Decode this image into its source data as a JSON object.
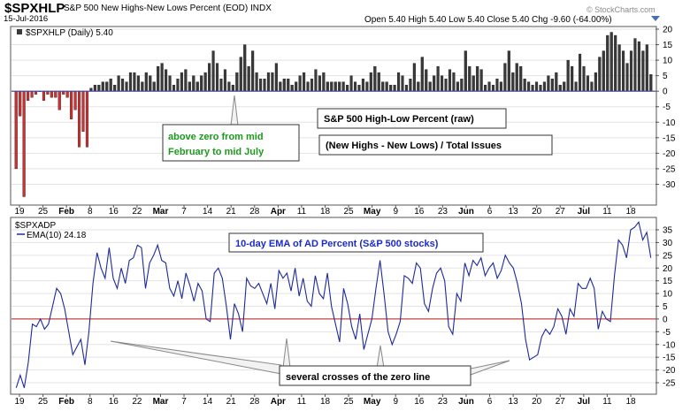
{
  "header": {
    "symbol": "$SPXHLP",
    "description": "S&P 500 New Highs-New Lows Percent (EOD)  INDX",
    "date": "15-Jul-2016",
    "quote": "Open 5.40  High 5.40  Low 5.40  Close 5.40  Chg -9.60 (-64.00%)",
    "watermark": "© StockCharts.com"
  },
  "x_axis": {
    "ticks": [
      "19",
      "25",
      "Feb",
      "8",
      "16",
      "22",
      "Mar",
      "7",
      "14",
      "21",
      "28",
      "Apr",
      "11",
      "18",
      "25",
      "May",
      "9",
      "16",
      "23",
      "Jun",
      "6",
      "13",
      "20",
      "27",
      "Jul",
      "11",
      "18"
    ],
    "bold": [
      "Feb",
      "Mar",
      "Apr",
      "May",
      "Jun",
      "Jul"
    ]
  },
  "colors": {
    "up_bar": "#3a3a3a",
    "down_bar": "#d03030",
    "ema_line": "#1e2a9a",
    "zero_line": "#c01818",
    "title_blue": "#1a2ad0",
    "annotation_green": "#1a9a1a"
  },
  "annotations": {
    "hilo_box1": "S&P 500 High-Low Percent (raw)",
    "hilo_box2": "(New Highs - New Lows) /  Total Issues",
    "green_note_line1": "above zero from mid",
    "green_note_line2": "February to mid July",
    "ema_title": "10-day EMA of AD Percent (S&P 500 stocks)",
    "crosses_note": "several crosses of the zero line"
  },
  "chart_data": [
    {
      "type": "bar",
      "legend": "$SPXHLP (Daily) 5.40",
      "ylim": [
        -35,
        20
      ],
      "yticks": [
        20,
        15,
        10,
        5,
        0,
        -5,
        -10,
        -15,
        -20,
        -25,
        -30
      ],
      "values": [
        -25,
        -8,
        -34,
        -3,
        -2,
        -1,
        0,
        -3,
        -1,
        -2,
        -2,
        -6,
        -1,
        -2,
        -9,
        -6,
        -18,
        -13,
        -18,
        1,
        2,
        2,
        3,
        3,
        4,
        2,
        5,
        4,
        3,
        6,
        6,
        5,
        3,
        6,
        5,
        3,
        8,
        9,
        7,
        5,
        2,
        4,
        6,
        7,
        3,
        5,
        3,
        5,
        6,
        9,
        13,
        9,
        4,
        7,
        3,
        2,
        6,
        11,
        15,
        8,
        13,
        6,
        4,
        4,
        6,
        6,
        9,
        3,
        4,
        4,
        2,
        3,
        5,
        6,
        3,
        4,
        7,
        5,
        6,
        3,
        3,
        3,
        3,
        3,
        2,
        5,
        3,
        2,
        4,
        3,
        6,
        8,
        6,
        3,
        3,
        2,
        2,
        6,
        5,
        2,
        4,
        9,
        3,
        11,
        7,
        3,
        5,
        8,
        5,
        4,
        7,
        6,
        3,
        4,
        13,
        8,
        5,
        8,
        7,
        2,
        3,
        2,
        4,
        3,
        9,
        13,
        6,
        9,
        8,
        4,
        3,
        2,
        3,
        2,
        3,
        5,
        4,
        6,
        2,
        3,
        10,
        8,
        3,
        12,
        8,
        5,
        3,
        6,
        11,
        13,
        18,
        19,
        18,
        15,
        13,
        9,
        13,
        17,
        16,
        13,
        15,
        5.4
      ]
    },
    {
      "type": "line",
      "legend_symbol": "$SPXADP",
      "legend": "EMA(10) 24.18",
      "ylim": [
        -30,
        40
      ],
      "yticks": [
        35,
        30,
        25,
        20,
        15,
        10,
        5,
        0,
        -5,
        -10,
        -15,
        -20,
        -25
      ],
      "values": [
        -27,
        -22,
        -27,
        -17,
        -2,
        -3,
        0,
        -4,
        -2,
        5,
        12,
        10,
        4,
        -5,
        -14,
        -11,
        -8,
        -18,
        -5,
        14,
        26,
        20,
        16,
        28,
        16,
        12,
        20,
        14,
        23,
        24,
        29,
        28,
        12,
        22,
        25,
        29,
        23,
        22,
        12,
        9,
        15,
        8,
        18,
        13,
        7,
        14,
        11,
        0,
        -1,
        18,
        20,
        16,
        5,
        -8,
        6,
        2,
        -5,
        16,
        13,
        12,
        14,
        10,
        6,
        14,
        4,
        19,
        16,
        18,
        11,
        20,
        9,
        16,
        7,
        5,
        17,
        10,
        8,
        18,
        5,
        -2,
        -9,
        12,
        6,
        -3,
        -8,
        2,
        -12,
        -6,
        0,
        12,
        23,
        10,
        -5,
        -10,
        -6,
        -1,
        17,
        16,
        14,
        22,
        20,
        6,
        3,
        12,
        18,
        20,
        15,
        -3,
        -6,
        10,
        7,
        22,
        17,
        23,
        21,
        24,
        17,
        20,
        22,
        16,
        19,
        25,
        22,
        20,
        14,
        6,
        -8,
        -16,
        -15,
        -14,
        -7,
        -4,
        -6,
        -3,
        4,
        1,
        -6,
        4,
        1,
        14,
        12,
        12,
        16,
        12,
        -4,
        3,
        0,
        -1,
        17,
        31,
        29,
        24,
        35,
        36,
        38,
        31,
        34,
        24
      ]
    }
  ]
}
